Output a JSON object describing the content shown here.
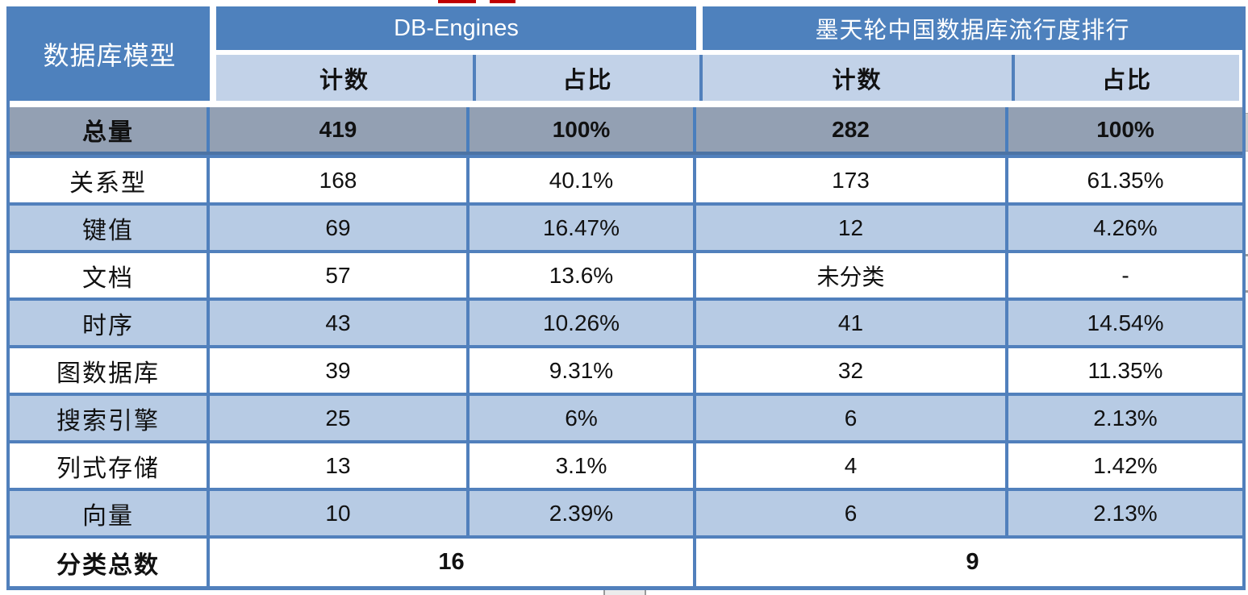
{
  "table": {
    "corner_header": "数据库模型",
    "groups": [
      {
        "label": "DB-Engines"
      },
      {
        "label": "墨天轮中国数据库流行度排行"
      }
    ],
    "sub_headers": [
      "计数",
      "占比",
      "计数",
      "占比"
    ],
    "total_row": {
      "label": "总量",
      "cells": [
        "419",
        "100%",
        "282",
        "100%"
      ]
    },
    "rows": [
      {
        "label": "关系型",
        "cells": [
          "168",
          "40.1%",
          "173",
          "61.35%"
        ]
      },
      {
        "label": "键值",
        "cells": [
          "69",
          "16.47%",
          "12",
          "4.26%"
        ]
      },
      {
        "label": "文档",
        "cells": [
          "57",
          "13.6%",
          "未分类",
          "-"
        ]
      },
      {
        "label": "时序",
        "cells": [
          "43",
          "10.26%",
          "41",
          "14.54%"
        ]
      },
      {
        "label": "图数据库",
        "cells": [
          "39",
          "9.31%",
          "32",
          "11.35%"
        ]
      },
      {
        "label": "搜索引擎",
        "cells": [
          "25",
          "6%",
          "6",
          "2.13%"
        ]
      },
      {
        "label": "列式存储",
        "cells": [
          "13",
          "3.1%",
          "4",
          "1.42%"
        ]
      },
      {
        "label": "向量",
        "cells": [
          "10",
          "2.39%",
          "6",
          "2.13%"
        ]
      }
    ],
    "summary_row": {
      "label": "分类总数",
      "values": [
        "16",
        "9"
      ]
    }
  },
  "colors": {
    "header-blue": "#4e81bd",
    "subheader-blue": "#c2d2e8",
    "row-blue": "#b7cbe4",
    "total-gray": "#93a0b3",
    "line-blue": "#5180bc",
    "red-mark": "#c00000"
  }
}
